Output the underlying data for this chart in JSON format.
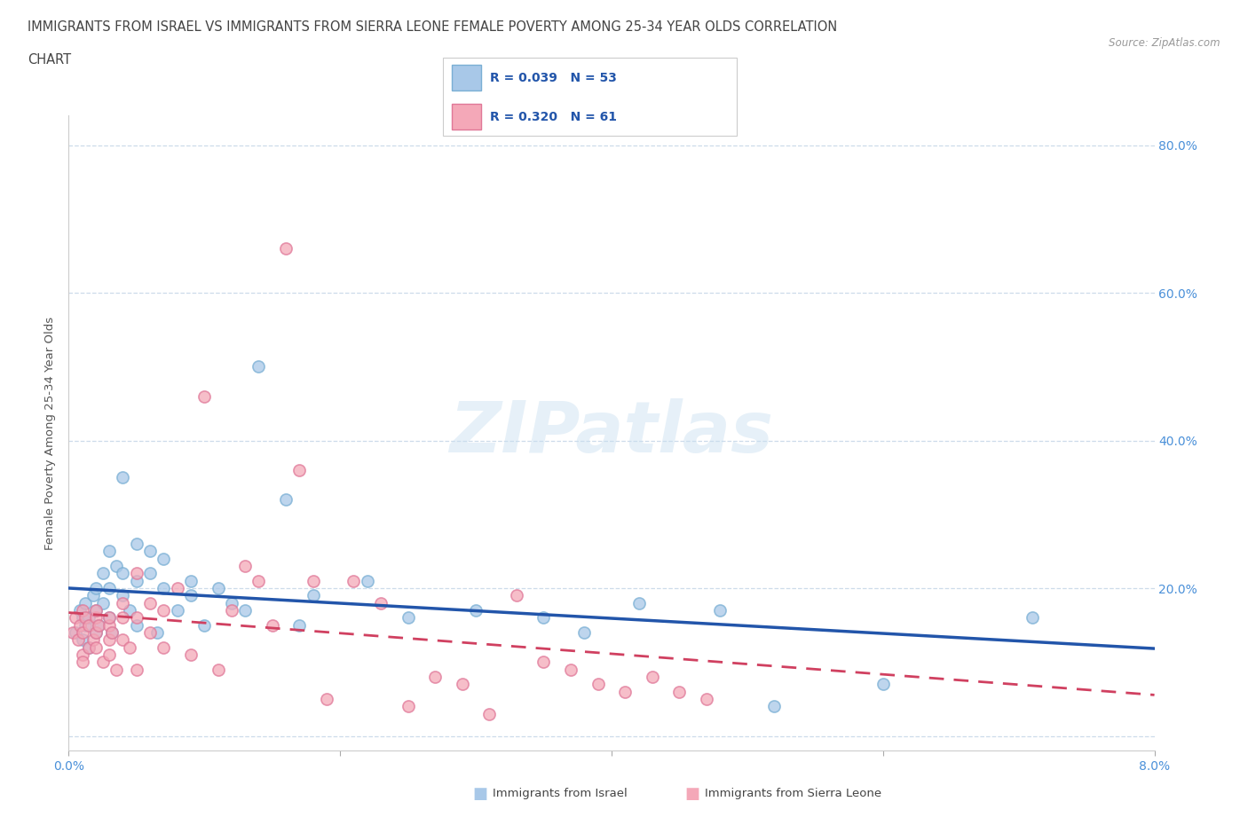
{
  "title_line1": "IMMIGRANTS FROM ISRAEL VS IMMIGRANTS FROM SIERRA LEONE FEMALE POVERTY AMONG 25-34 YEAR OLDS CORRELATION",
  "title_line2": "CHART",
  "source": "Source: ZipAtlas.com",
  "ylabel": "Female Poverty Among 25-34 Year Olds",
  "xlim": [
    0.0,
    0.08
  ],
  "ylim": [
    -0.02,
    0.84
  ],
  "xticks": [
    0.0,
    0.02,
    0.04,
    0.06,
    0.08
  ],
  "xticklabels": [
    "0.0%",
    "",
    "",
    "",
    "8.0%"
  ],
  "yticks": [
    0.0,
    0.2,
    0.4,
    0.6,
    0.8
  ],
  "yticklabels": [
    "",
    "20.0%",
    "40.0%",
    "60.0%",
    "80.0%"
  ],
  "israel_R": 0.039,
  "israel_N": 53,
  "sierra_leone_R": 0.32,
  "sierra_leone_N": 61,
  "israel_color": "#a8c8e8",
  "israel_edge_color": "#7aafd4",
  "sierra_leone_color": "#f4a8b8",
  "sierra_leone_edge_color": "#e07898",
  "israel_line_color": "#2255aa",
  "sierra_leone_line_color": "#d04060",
  "watermark": "ZIPatlas",
  "israel_x": [
    0.0005,
    0.0008,
    0.001,
    0.001,
    0.0012,
    0.0012,
    0.0015,
    0.0015,
    0.0018,
    0.002,
    0.002,
    0.002,
    0.0022,
    0.0025,
    0.0025,
    0.003,
    0.003,
    0.003,
    0.0032,
    0.0035,
    0.004,
    0.004,
    0.004,
    0.0045,
    0.005,
    0.005,
    0.005,
    0.006,
    0.006,
    0.0065,
    0.007,
    0.007,
    0.008,
    0.009,
    0.009,
    0.01,
    0.011,
    0.012,
    0.013,
    0.014,
    0.016,
    0.017,
    0.018,
    0.022,
    0.025,
    0.03,
    0.035,
    0.038,
    0.042,
    0.048,
    0.052,
    0.06,
    0.071
  ],
  "israel_y": [
    0.14,
    0.17,
    0.13,
    0.16,
    0.15,
    0.18,
    0.12,
    0.16,
    0.19,
    0.14,
    0.17,
    0.2,
    0.15,
    0.22,
    0.18,
    0.25,
    0.16,
    0.2,
    0.14,
    0.23,
    0.35,
    0.22,
    0.19,
    0.17,
    0.26,
    0.21,
    0.15,
    0.25,
    0.22,
    0.14,
    0.24,
    0.2,
    0.17,
    0.19,
    0.21,
    0.15,
    0.2,
    0.18,
    0.17,
    0.5,
    0.32,
    0.15,
    0.19,
    0.21,
    0.16,
    0.17,
    0.16,
    0.14,
    0.18,
    0.17,
    0.04,
    0.07,
    0.16
  ],
  "sierra_leone_x": [
    0.0003,
    0.0005,
    0.0007,
    0.0008,
    0.001,
    0.001,
    0.001,
    0.001,
    0.0012,
    0.0015,
    0.0015,
    0.0018,
    0.002,
    0.002,
    0.002,
    0.002,
    0.0022,
    0.0025,
    0.003,
    0.003,
    0.003,
    0.003,
    0.0032,
    0.0035,
    0.004,
    0.004,
    0.004,
    0.0045,
    0.005,
    0.005,
    0.005,
    0.006,
    0.006,
    0.007,
    0.007,
    0.008,
    0.009,
    0.01,
    0.011,
    0.012,
    0.013,
    0.014,
    0.015,
    0.016,
    0.017,
    0.018,
    0.019,
    0.021,
    0.023,
    0.025,
    0.027,
    0.029,
    0.031,
    0.033,
    0.035,
    0.037,
    0.039,
    0.041,
    0.043,
    0.045,
    0.047
  ],
  "sierra_leone_y": [
    0.14,
    0.16,
    0.13,
    0.15,
    0.17,
    0.11,
    0.14,
    0.1,
    0.16,
    0.15,
    0.12,
    0.13,
    0.16,
    0.14,
    0.12,
    0.17,
    0.15,
    0.1,
    0.15,
    0.13,
    0.16,
    0.11,
    0.14,
    0.09,
    0.16,
    0.13,
    0.18,
    0.12,
    0.22,
    0.16,
    0.09,
    0.18,
    0.14,
    0.17,
    0.12,
    0.2,
    0.11,
    0.46,
    0.09,
    0.17,
    0.23,
    0.21,
    0.15,
    0.66,
    0.36,
    0.21,
    0.05,
    0.21,
    0.18,
    0.04,
    0.08,
    0.07,
    0.03,
    0.19,
    0.1,
    0.09,
    0.07,
    0.06,
    0.08,
    0.06,
    0.05
  ]
}
